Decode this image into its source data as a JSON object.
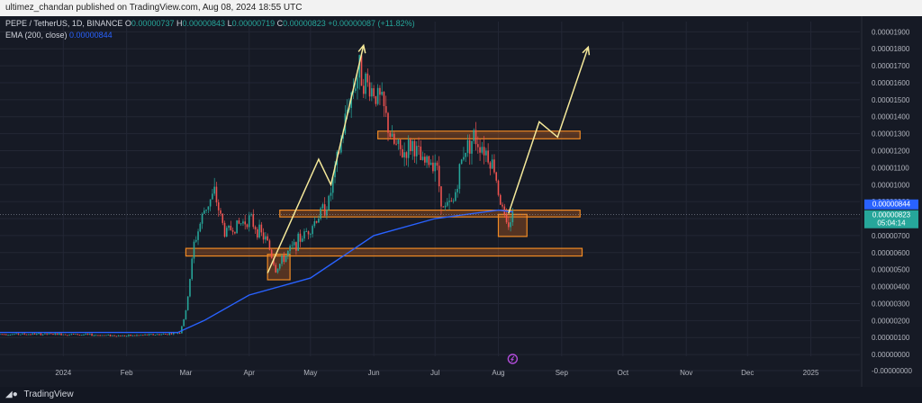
{
  "header": {
    "published": "ultimez_chandan published on TradingView.com, Aug 08, 2024 18:55 UTC"
  },
  "legend": {
    "symbol": "PEPE / TetherUS, 1D, BINANCE",
    "open_label": "O",
    "open": "0.00000737",
    "high_label": "H",
    "high": "0.00000843",
    "low_label": "L",
    "low": "0.00000719",
    "close_label": "C",
    "close": "0.00000823",
    "change": "+0.00000087 (+11.82%)",
    "ema_label": "EMA (200, close)",
    "ema_value": "0.00000844"
  },
  "price_tags": {
    "ema": "0.00000844",
    "last": "0.00000823",
    "countdown": "05:04:14"
  },
  "footer": {
    "brand": "TradingView"
  },
  "colors": {
    "bg": "#161a25",
    "up": "#26a69a",
    "down": "#ef5350",
    "ema": "#2962ff",
    "zone_fill": "#c8641e",
    "zone_stroke": "#f08a24",
    "arrow": "#f5e99a",
    "text": "#b2b5be"
  },
  "chart_data": {
    "type": "candlestick",
    "title": "PEPE / TetherUS, 1D, BINANCE",
    "y_ticks": [
      "0.00001900",
      "0.00001800",
      "0.00001700",
      "0.00001600",
      "0.00001500",
      "0.00001400",
      "0.00001300",
      "0.00001200",
      "0.00001100",
      "0.00001000",
      "0.00000900",
      "0.00000800",
      "0.00000700",
      "0.00000600",
      "0.00000500",
      "0.00000400",
      "0.00000300",
      "0.00000200",
      "0.00000100",
      "0.00000000",
      "-0.00000000"
    ],
    "x_ticks": [
      "2024",
      "Feb",
      "Mar",
      "Apr",
      "May",
      "Jun",
      "Jul",
      "Aug",
      "Sep",
      "Oct",
      "Nov",
      "Dec",
      "2025"
    ],
    "ylim": [
      -1e-07,
      1.96e-05
    ],
    "close_series": {
      "dates": [
        "2023-12-01",
        "2024-01-01",
        "2024-02-01",
        "2024-02-20",
        "2024-02-27",
        "2024-03-01",
        "2024-03-05",
        "2024-03-10",
        "2024-03-15",
        "2024-03-20",
        "2024-04-01",
        "2024-04-10",
        "2024-04-14",
        "2024-04-20",
        "2024-05-01",
        "2024-05-10",
        "2024-05-20",
        "2024-05-25",
        "2024-05-28",
        "2024-06-01",
        "2024-06-05",
        "2024-06-10",
        "2024-06-15",
        "2024-06-20",
        "2024-06-25",
        "2024-07-01",
        "2024-07-05",
        "2024-07-10",
        "2024-07-15",
        "2024-07-20",
        "2024-07-25",
        "2024-07-30",
        "2024-08-02",
        "2024-08-05",
        "2024-08-08"
      ],
      "values": [
        1.2e-06,
        1.2e-06,
        1.1e-06,
        1.2e-06,
        1.3e-06,
        2.5e-06,
        6.5e-06,
        8.5e-06,
        9.5e-06,
        7.2e-06,
        8e-06,
        6.6e-06,
        5e-06,
        6e-06,
        7.5e-06,
        9e-06,
        1.5e-05,
        1.68e-05,
        1.6e-05,
        1.55e-05,
        1.48e-05,
        1.25e-05,
        1.18e-05,
        1.24e-05,
        1.12e-05,
        1.15e-05,
        8.5e-06,
        9e-06,
        1.2e-05,
        1.28e-05,
        1.22e-05,
        1.1e-05,
        9e-06,
        7.5e-06,
        8.2e-06
      ]
    },
    "ema": {
      "name": "EMA (200, close)",
      "dates": [
        "2023-12-01",
        "2024-01-15",
        "2024-02-26",
        "2024-03-10",
        "2024-04-01",
        "2024-05-01",
        "2024-06-01",
        "2024-07-01",
        "2024-08-01",
        "2024-08-08"
      ],
      "values": [
        1.3e-06,
        1.3e-06,
        1.3e-06,
        2e-06,
        3.5e-06,
        4.5e-06,
        7e-06,
        8e-06,
        8.5e-06,
        8.4e-06
      ]
    },
    "zones": [
      {
        "from": "2024-06-03",
        "to": "2024-09-10",
        "low": 1.27e-05,
        "high": 1.315e-05
      },
      {
        "from": "2024-04-16",
        "to": "2024-09-10",
        "low": 8.1e-06,
        "high": 8.5e-06
      },
      {
        "from": "2024-03-01",
        "to": "2024-09-11",
        "low": 5.8e-06,
        "high": 6.25e-06
      },
      {
        "from": "2024-04-10",
        "to": "2024-04-21",
        "low": 4.4e-06,
        "high": 5.9e-06
      },
      {
        "from": "2024-08-01",
        "to": "2024-08-15",
        "low": 6.95e-06,
        "high": 8.25e-06
      }
    ],
    "projection_arrows": [
      {
        "points": [
          [
            "2024-04-10",
            4.8e-06
          ],
          [
            "2024-05-05",
            1.15e-05
          ],
          [
            "2024-05-11",
            1e-05
          ],
          [
            "2024-05-27",
            1.82e-05
          ]
        ]
      },
      {
        "points": [
          [
            "2024-08-06",
            8.3e-06
          ],
          [
            "2024-08-21",
            1.37e-05
          ],
          [
            "2024-08-30",
            1.28e-05
          ],
          [
            "2024-09-14",
            1.81e-05
          ]
        ]
      }
    ]
  }
}
